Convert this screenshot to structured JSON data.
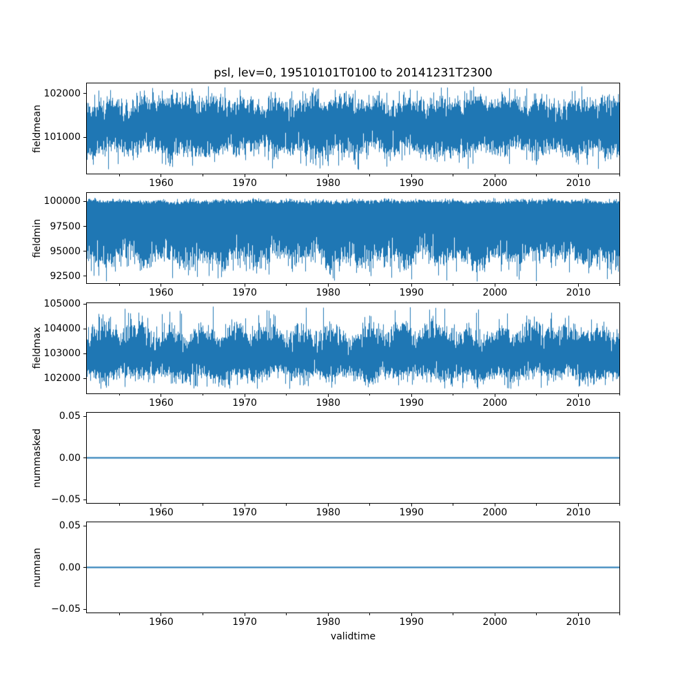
{
  "figure": {
    "title": "psl, lev=0, 19510101T0100 to 20141231T2300",
    "background": "#ffffff",
    "text_color": "#000000",
    "line_color": "#1f77b4"
  },
  "x_axis": {
    "label": "validtime",
    "start_year": 1951,
    "end_year": 2015,
    "major_ticks": [
      {
        "year": 1960,
        "label": "1960"
      },
      {
        "year": 1970,
        "label": "1970"
      },
      {
        "year": 1980,
        "label": "1980"
      },
      {
        "year": 1990,
        "label": "1990"
      },
      {
        "year": 2000,
        "label": "2000"
      },
      {
        "year": 2010,
        "label": "2010"
      }
    ],
    "minor_tick_years": [
      1955,
      1965,
      1975,
      1985,
      1995,
      2005,
      2015
    ]
  },
  "chart_data": [
    {
      "type": "line",
      "ylabel": "fieldmean",
      "ylim": [
        100150,
        102250
      ],
      "yticks": [
        {
          "value": 101000,
          "label": "101000"
        },
        {
          "value": 102000,
          "label": "102000"
        }
      ],
      "legend": "none",
      "grid": false,
      "series": {
        "name": "fieldmean",
        "style": "dense-noise-band",
        "band_top_typical": 101780,
        "band_top_sd": 160,
        "band_bottom_typical": 100720,
        "band_bottom_sd": 170,
        "observed_max": 102180,
        "observed_min": 100240
      }
    },
    {
      "type": "line",
      "ylabel": "fieldmin",
      "ylim": [
        91700,
        100900
      ],
      "yticks": [
        {
          "value": 92500,
          "label": "92500"
        },
        {
          "value": 95000,
          "label": "95000"
        },
        {
          "value": 97500,
          "label": "97500"
        },
        {
          "value": 100000,
          "label": "100000"
        }
      ],
      "legend": "none",
      "grid": false,
      "series": {
        "name": "fieldmin",
        "style": "dense-noise-band",
        "band_top_typical": 100040,
        "band_top_sd": 140,
        "band_bottom_typical": 94300,
        "band_bottom_sd": 950,
        "observed_max": 100380,
        "observed_min": 91880
      }
    },
    {
      "type": "line",
      "ylabel": "fieldmax",
      "ylim": [
        101380,
        105070
      ],
      "yticks": [
        {
          "value": 102000,
          "label": "102000"
        },
        {
          "value": 103000,
          "label": "103000"
        },
        {
          "value": 104000,
          "label": "104000"
        },
        {
          "value": 105000,
          "label": "105000"
        }
      ],
      "legend": "none",
      "grid": false,
      "series": {
        "name": "fieldmax",
        "style": "dense-noise-band",
        "band_top_typical": 103820,
        "band_top_sd": 330,
        "band_bottom_typical": 102130,
        "band_bottom_sd": 230,
        "observed_max": 104940,
        "observed_min": 101570
      }
    },
    {
      "type": "line",
      "ylabel": "nummasked",
      "ylim": [
        -0.055,
        0.055
      ],
      "yticks": [
        {
          "value": -0.05,
          "label": "−0.05"
        },
        {
          "value": 0,
          "label": "0.00"
        },
        {
          "value": 0.05,
          "label": "0.05"
        }
      ],
      "legend": "none",
      "grid": false,
      "series": {
        "name": "nummasked",
        "style": "constant-line",
        "value": 0
      }
    },
    {
      "type": "line",
      "ylabel": "numnan",
      "ylim": [
        -0.055,
        0.055
      ],
      "yticks": [
        {
          "value": -0.05,
          "label": "−0.05"
        },
        {
          "value": 0,
          "label": "0.00"
        },
        {
          "value": 0.05,
          "label": "0.05"
        }
      ],
      "legend": "none",
      "grid": false,
      "series": {
        "name": "numnan",
        "style": "constant-line",
        "value": 0
      }
    }
  ]
}
